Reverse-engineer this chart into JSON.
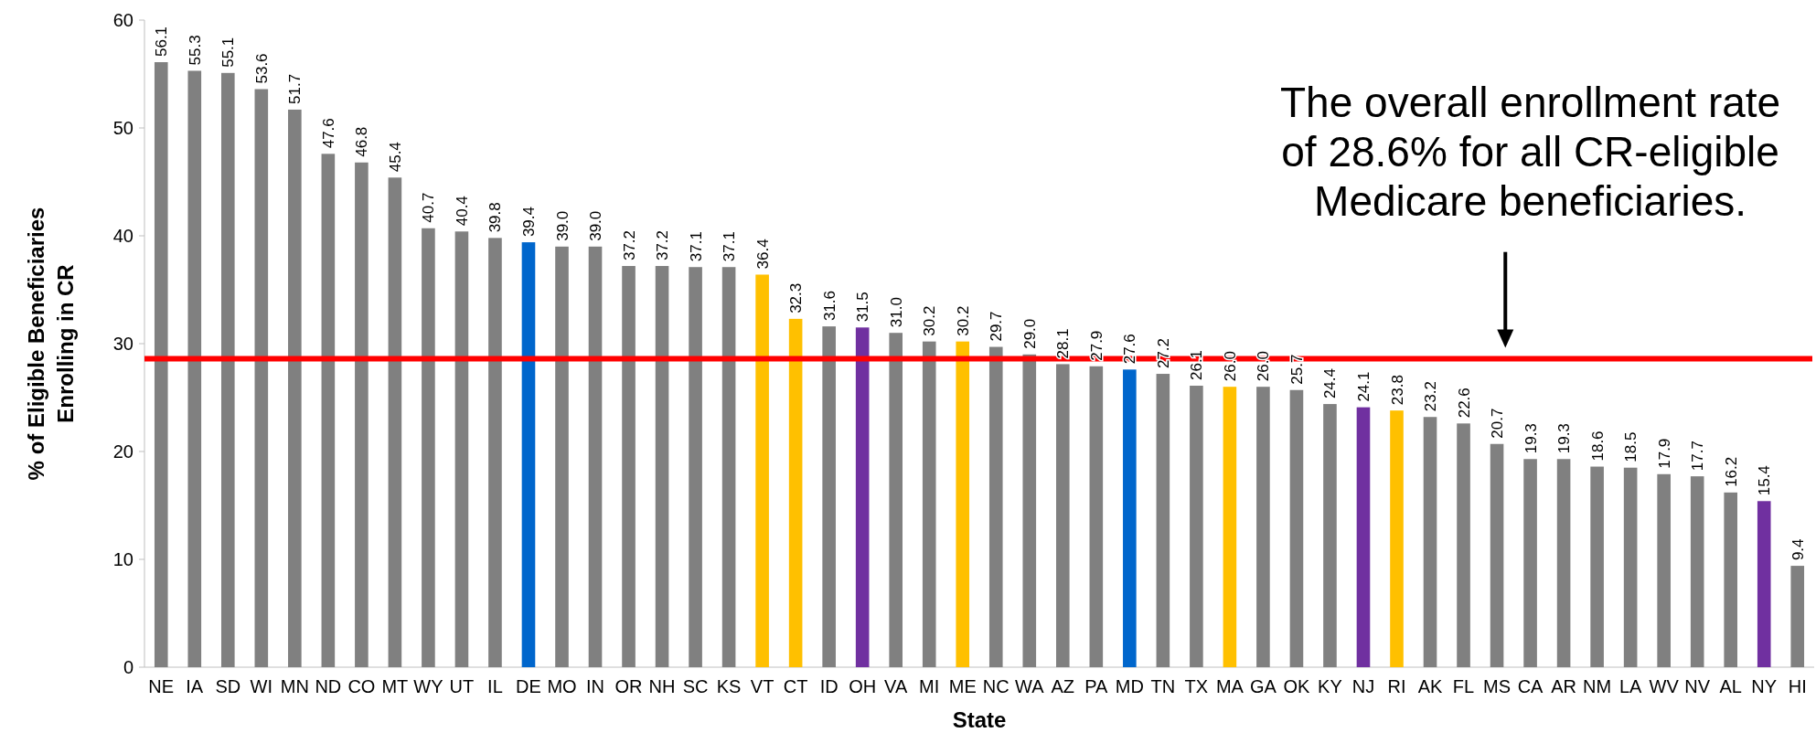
{
  "chart_data": {
    "type": "bar",
    "xlabel": "State",
    "ylabel": "% of Eligible Beneficiaries Enrolling in CR",
    "categories": [
      "NE",
      "IA",
      "SD",
      "WI",
      "MN",
      "ND",
      "CO",
      "MT",
      "WY",
      "UT",
      "IL",
      "DE",
      "MO",
      "IN",
      "OR",
      "NH",
      "SC",
      "KS",
      "VT",
      "CT",
      "ID",
      "OH",
      "VA",
      "MI",
      "ME",
      "NC",
      "WA",
      "AZ",
      "PA",
      "MD",
      "TN",
      "TX",
      "MA",
      "GA",
      "OK",
      "KY",
      "NJ",
      "RI",
      "AK",
      "FL",
      "MS",
      "CA",
      "AR",
      "NM",
      "LA",
      "WV",
      "NV",
      "AL",
      "NY",
      "HI"
    ],
    "values": [
      56.1,
      55.3,
      55.1,
      53.6,
      51.7,
      47.6,
      46.8,
      45.4,
      40.7,
      40.4,
      39.8,
      39.4,
      39.0,
      39.0,
      37.2,
      37.2,
      37.1,
      37.1,
      36.4,
      32.3,
      31.6,
      31.5,
      31.0,
      30.2,
      30.2,
      29.7,
      29.0,
      28.1,
      27.9,
      27.6,
      27.2,
      26.1,
      26.0,
      26.0,
      25.7,
      24.4,
      24.1,
      23.8,
      23.2,
      22.6,
      20.7,
      19.3,
      19.3,
      18.6,
      18.5,
      17.9,
      17.7,
      16.2,
      15.4,
      9.4
    ],
    "colors": [
      "#808080",
      "#808080",
      "#808080",
      "#808080",
      "#808080",
      "#808080",
      "#808080",
      "#808080",
      "#808080",
      "#808080",
      "#808080",
      "#0066cc",
      "#808080",
      "#808080",
      "#808080",
      "#808080",
      "#808080",
      "#808080",
      "#ffc000",
      "#ffc000",
      "#808080",
      "#7030a0",
      "#808080",
      "#808080",
      "#ffc000",
      "#808080",
      "#808080",
      "#808080",
      "#808080",
      "#0066cc",
      "#808080",
      "#808080",
      "#ffc000",
      "#808080",
      "#808080",
      "#808080",
      "#7030a0",
      "#ffc000",
      "#808080",
      "#808080",
      "#808080",
      "#808080",
      "#808080",
      "#808080",
      "#808080",
      "#808080",
      "#808080",
      "#808080",
      "#7030a0",
      "#808080"
    ],
    "ylim": [
      0,
      60
    ],
    "yticks": [
      0,
      10,
      20,
      30,
      40,
      50,
      60
    ],
    "value_labels": [
      "56.1",
      "55.3",
      "55.1",
      "53.6",
      "51.7",
      "47.6",
      "46.8",
      "45.4",
      "40.7",
      "40.4",
      "39.8",
      "39.4",
      "39.0",
      "39.0",
      "37.2",
      "37.2",
      "37.1",
      "37.1",
      "36.4",
      "32.3",
      "31.6",
      "31.5",
      "31.0",
      "30.2",
      "30.2",
      "29.7",
      "29.0",
      "28.1",
      "27.9",
      "27.6",
      "27.2",
      "26.1",
      "26.0",
      "26.0",
      "25.7",
      "24.4",
      "24.1",
      "23.8",
      "23.2",
      "22.6",
      "20.7",
      "19.3",
      "19.3",
      "18.6",
      "18.5",
      "17.9",
      "17.7",
      "16.2",
      "15.4",
      "9.4"
    ],
    "annotations": [
      "The overall enrollment rate of 28.6% for all CR-eligible Medicare beneficiaries."
    ],
    "ref_lines": [
      {
        "axis": "y",
        "value": 28.6,
        "color": "#ff0000"
      }
    ]
  }
}
